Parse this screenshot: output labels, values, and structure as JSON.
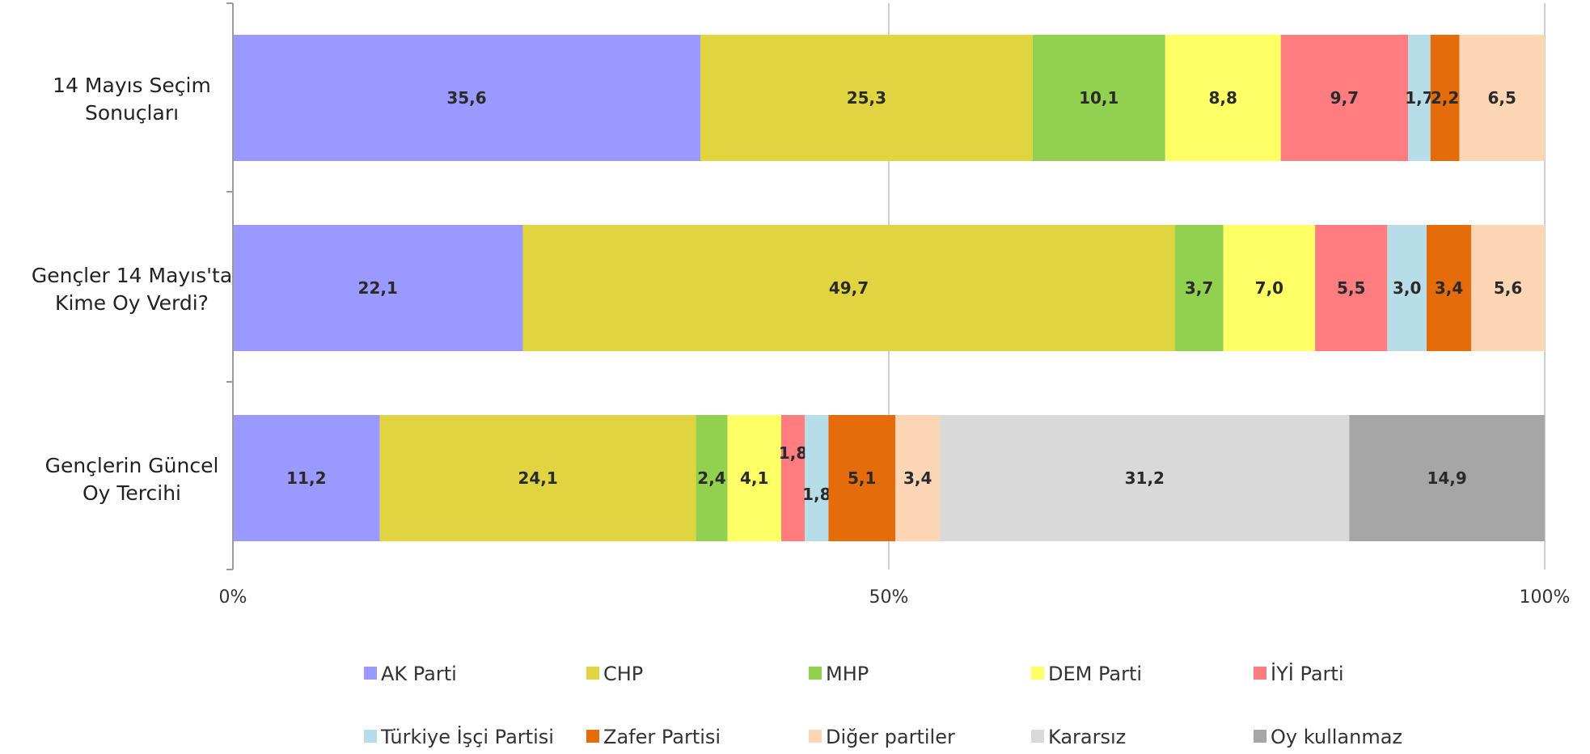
{
  "chart_data": {
    "type": "bar",
    "orientation": "horizontal",
    "stacked": "percent",
    "categories": [
      "14 Mayıs Seçim Sonuçları",
      "Gençler 14 Mayıs'ta Kime Oy Verdi?",
      "Gençlerin Güncel Oy Tercihi"
    ],
    "category_lines": [
      [
        "14 Mayıs Seçim",
        "Sonuçları"
      ],
      [
        "Gençler 14 Mayıs'ta",
        "Kime Oy Verdi?"
      ],
      [
        "Gençlerin Güncel",
        "Oy Tercihi"
      ]
    ],
    "series": [
      {
        "name": "AK Parti",
        "color": "#9999FF",
        "values": [
          35.6,
          22.1,
          11.2
        ],
        "labels": [
          "35,6",
          "22,1",
          "11,2"
        ]
      },
      {
        "name": "CHP",
        "color": "#E1D441",
        "values": [
          25.3,
          49.7,
          24.1
        ],
        "labels": [
          "25,3",
          "49,7",
          "24,1"
        ]
      },
      {
        "name": "MHP",
        "color": "#92D050",
        "values": [
          10.1,
          3.7,
          2.4
        ],
        "labels": [
          "10,1",
          "3,7",
          "2,4"
        ]
      },
      {
        "name": "DEM Parti",
        "color": "#FFFF66",
        "values": [
          8.8,
          7.0,
          4.1
        ],
        "labels": [
          "8,8",
          "7,0",
          "4,1"
        ]
      },
      {
        "name": "İYİ Parti",
        "color": "#FF7C80",
        "values": [
          9.7,
          5.5,
          1.8
        ],
        "labels": [
          "9,7",
          "5,5",
          "1,8"
        ]
      },
      {
        "name": "Türkiye İşçi Partisi",
        "color": "#B7DEE8",
        "values": [
          1.7,
          3.0,
          1.8
        ],
        "labels": [
          "1,7",
          "3,0",
          "1,8"
        ]
      },
      {
        "name": "Zafer Partisi",
        "color": "#E46C0A",
        "values": [
          2.2,
          3.4,
          5.1
        ],
        "labels": [
          "2,2",
          "3,4",
          "5,1"
        ]
      },
      {
        "name": "Diğer partiler",
        "color": "#FCD5B5",
        "values": [
          6.5,
          5.6,
          3.4
        ],
        "labels": [
          "6,5",
          "5,6",
          "3,4"
        ]
      },
      {
        "name": "Kararsız",
        "color": "#D9D9D9",
        "values": [
          0,
          0,
          31.2
        ],
        "labels": [
          "",
          "",
          "31,2"
        ]
      },
      {
        "name": "Oy kullanmaz",
        "color": "#A6A6A6",
        "values": [
          0,
          0,
          14.9
        ],
        "labels": [
          "",
          "",
          "14,9"
        ]
      }
    ],
    "x_ticks": [
      "0%",
      "50%",
      "100%"
    ],
    "xlim": [
      0,
      100
    ],
    "grid": true,
    "legend_position": "bottom",
    "title": "",
    "xlabel": "",
    "ylabel": ""
  }
}
